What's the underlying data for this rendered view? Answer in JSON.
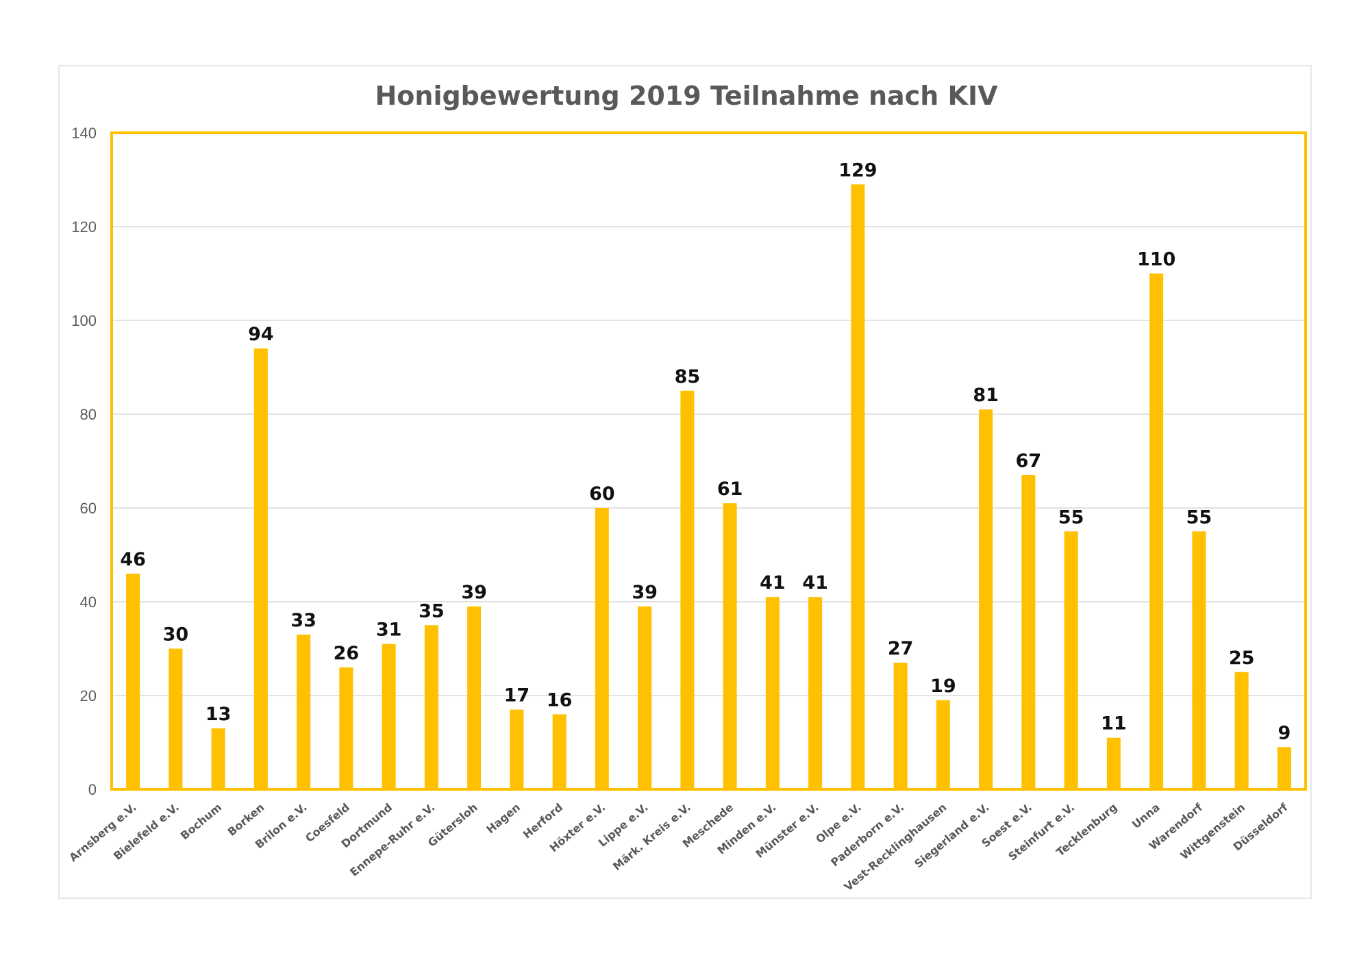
{
  "chart_data": {
    "type": "bar",
    "title": "Honigbewertung 2019 Teilnahme nach KIV",
    "xlabel": "",
    "ylabel": "",
    "ylim": [
      0,
      140
    ],
    "yticks": [
      0,
      20,
      40,
      60,
      80,
      100,
      120,
      140
    ],
    "grid": true,
    "legend": "none",
    "categories": [
      "Arnsberg e.V.",
      "Bielefeld e.V.",
      "Bochum",
      "Borken",
      "Brilon e.V.",
      "Coesfeld",
      "Dortmund",
      "Ennepe-Ruhr e.V.",
      "Gütersloh",
      "Hagen",
      "Herford",
      "Höxter e.V.",
      "Lippe e.V.",
      "Märk. Kreis e.V.",
      "Meschede",
      "Minden e.V.",
      "Münster e.V.",
      "Olpe e.V.",
      "Paderborn e.V.",
      "Vest-Recklinghausen",
      "Siegerland e.V.",
      "Soest e.V.",
      "Steinfurt e.V.",
      "Tecklenburg",
      "Unna",
      "Warendorf",
      "Wittgenstein",
      "Düsseldorf"
    ],
    "values": [
      46,
      30,
      13,
      94,
      33,
      26,
      31,
      35,
      39,
      17,
      16,
      60,
      39,
      85,
      61,
      41,
      41,
      129,
      27,
      19,
      81,
      67,
      55,
      11,
      110,
      55,
      25,
      9
    ],
    "colors": {
      "bar": "#FFC000",
      "plot_border": "#FFC000",
      "grid": "#d9d9d9",
      "title": "#595959",
      "axis_text": "#595959",
      "value_label": "#111111"
    }
  }
}
